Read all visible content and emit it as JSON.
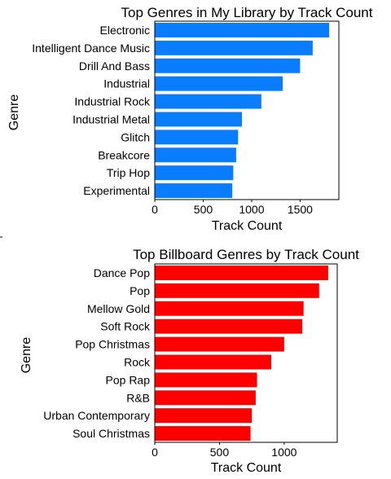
{
  "chart_data": [
    {
      "type": "bar",
      "orientation": "horizontal",
      "title": "Top Genres in My Library by Track Count",
      "xlabel": "Track Count",
      "ylabel": "Genre",
      "categories": [
        "Electronic",
        "Intelligent Dance Music",
        "Drill And Bass",
        "Industrial",
        "Industrial Rock",
        "Industrial Metal",
        "Glitch",
        "Breakcore",
        "Trip Hop",
        "Experimental"
      ],
      "values": [
        1800,
        1630,
        1500,
        1320,
        1100,
        900,
        860,
        840,
        810,
        800
      ],
      "xlim": [
        0,
        1900
      ],
      "xticks": [
        0,
        500,
        1000,
        1500
      ],
      "grid": false,
      "color": "#0a7dff"
    },
    {
      "type": "bar",
      "orientation": "horizontal",
      "title": "Top Billboard Genres by Track Count",
      "xlabel": "Track Count",
      "ylabel": "Genre",
      "categories": [
        "Dance Pop",
        "Pop",
        "Mellow Gold",
        "Soft Rock",
        "Pop Christmas",
        "Rock",
        "Pop Rap",
        "R&B",
        "Urban Contemporary",
        "Soul Christmas"
      ],
      "values": [
        1340,
        1270,
        1150,
        1140,
        1000,
        900,
        790,
        780,
        750,
        740
      ],
      "xlim": [
        0,
        1410
      ],
      "xticks": [
        0,
        500,
        1000
      ],
      "grid": false,
      "color": "#ff0000"
    }
  ]
}
